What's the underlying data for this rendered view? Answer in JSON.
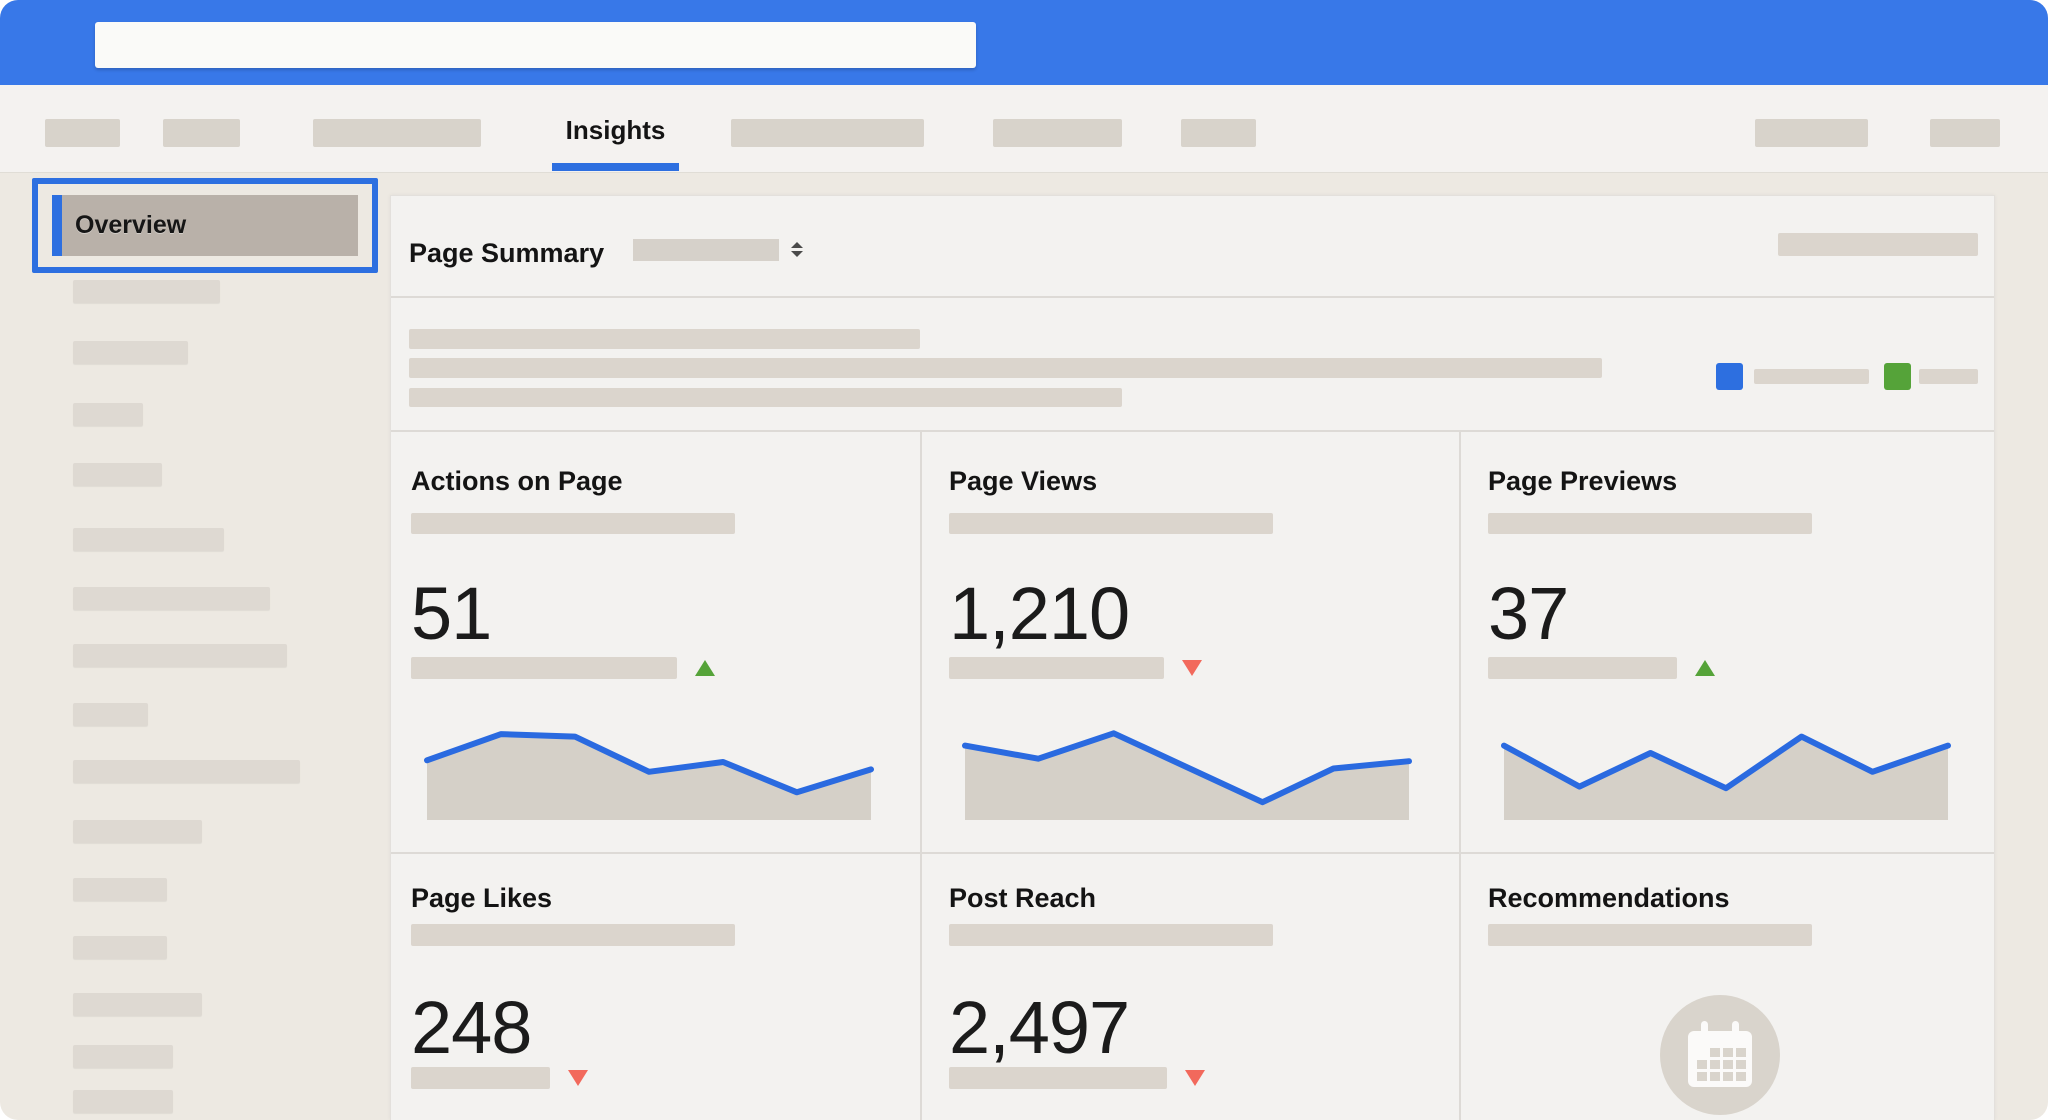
{
  "topbar": {
    "search_value": ""
  },
  "nav": {
    "active_tab": "Insights"
  },
  "sidebar": {
    "active_item": "Overview"
  },
  "header": {
    "title": "Page Summary"
  },
  "cards": [
    {
      "title": "Actions on Page",
      "value": "51",
      "trend": "up"
    },
    {
      "title": "Page Views",
      "value": "1,210",
      "trend": "down"
    },
    {
      "title": "Page Previews",
      "value": "37",
      "trend": "up"
    },
    {
      "title": "Page Likes",
      "value": "248",
      "trend": "down"
    },
    {
      "title": "Post Reach",
      "value": "2,497",
      "trend": "down"
    },
    {
      "title": "Recommendations",
      "icon": "calendar"
    }
  ],
  "colors": {
    "topbar_blue": "#3878E8",
    "accent_blue": "#2D6FE0",
    "legend_blue": "#2D6FE0",
    "legend_green": "#55A339",
    "trend_up_green": "#55A339",
    "trend_down_red": "#F2695C",
    "spark_line": "#2A6AE0",
    "spark_fill": "#D5D0C8"
  },
  "chart_data": [
    {
      "type": "area",
      "title": "Actions on Page",
      "x": [
        0,
        0.167,
        0.333,
        0.5,
        0.667,
        0.833,
        1
      ],
      "values": [
        0.63,
        0.95,
        0.92,
        0.49,
        0.61,
        0.24,
        0.52
      ],
      "ylim": [
        0,
        1
      ],
      "grid": false,
      "legend": false
    },
    {
      "type": "area",
      "title": "Page Views",
      "x": [
        0,
        0.165,
        0.335,
        0.67,
        0.83,
        1
      ],
      "values": [
        0.81,
        0.65,
        0.96,
        0.12,
        0.53,
        0.62
      ],
      "ylim": [
        0,
        1
      ],
      "grid": false,
      "legend": false
    },
    {
      "type": "area",
      "title": "Page Previews",
      "x": [
        0,
        0.17,
        0.33,
        0.5,
        0.67,
        0.83,
        1
      ],
      "values": [
        0.81,
        0.31,
        0.72,
        0.29,
        0.92,
        0.49,
        0.81
      ],
      "ylim": [
        0,
        1
      ],
      "grid": false,
      "legend": false
    }
  ]
}
